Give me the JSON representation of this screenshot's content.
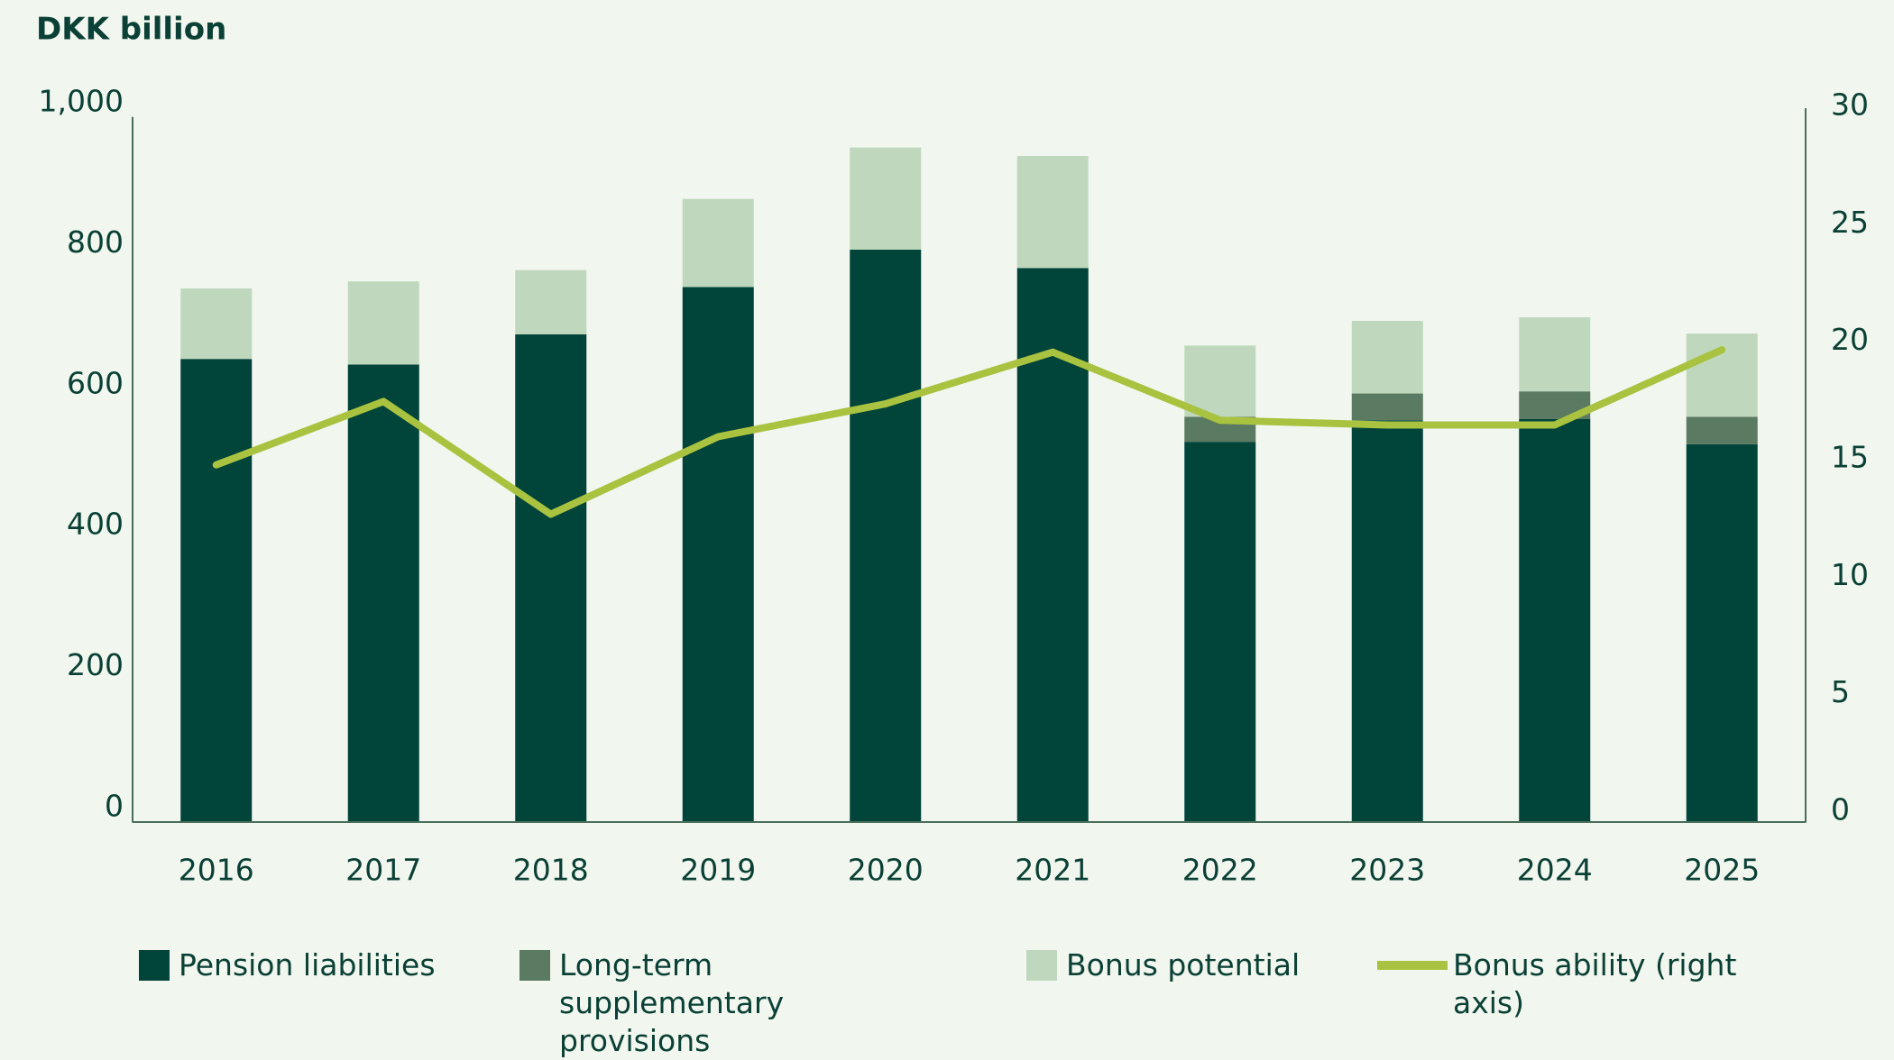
{
  "chart_data": {
    "type": "bar",
    "stacked": true,
    "title": "DKK billion",
    "categories": [
      "2016",
      "2017",
      "2018",
      "2019",
      "2020",
      "2021",
      "2022",
      "2023",
      "2024",
      "2025"
    ],
    "series": [
      {
        "name": "Pension liabilities",
        "color": "#00443a",
        "values": [
          657,
          649,
          692,
          759,
          812,
          786,
          539,
          570,
          572,
          536
        ]
      },
      {
        "name": "Long-term supplementary provisions",
        "color": "#5a7a61",
        "values": [
          null,
          null,
          null,
          null,
          null,
          null,
          36,
          38,
          39,
          39
        ]
      },
      {
        "name": "Bonus potential",
        "color": "#bfd8bd",
        "values": [
          100,
          118,
          91,
          125,
          145,
          159,
          101,
          103,
          105,
          118
        ]
      },
      {
        "name": "Bonus ability (right axis)",
        "type": "line",
        "axis": "y2",
        "color": "#a9c23f",
        "values": [
          15.2,
          17.9,
          13.1,
          16.4,
          17.8,
          20.0,
          17.1,
          16.9,
          16.9,
          20.1
        ]
      }
    ],
    "ylim": [
      0,
      1000
    ],
    "yticks": [
      0,
      200,
      400,
      600,
      800,
      {
        "value": 1000,
        "label": "1,000"
      }
    ],
    "y2lim": [
      0,
      30
    ],
    "y2ticks": [
      0,
      5,
      10,
      15,
      20,
      25,
      30
    ],
    "legend": "bottom"
  }
}
